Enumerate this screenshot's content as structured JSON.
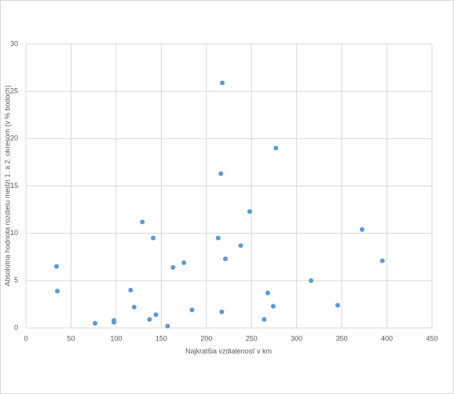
{
  "chart_data": {
    "type": "scatter",
    "xlabel": "Najkratšia vzdialenosť v km",
    "ylabel": "Absolútna hodnota rozdielu medzi 1. a 2. okresom (v % bodoch)",
    "color": "#5b9bd5",
    "x": [
      33.9,
      34.8,
      76.6,
      97.5,
      97.5,
      116,
      120,
      129,
      137,
      141,
      144,
      157,
      163,
      175,
      184,
      213,
      216,
      217.6,
      217,
      221,
      238,
      248,
      264,
      268,
      274,
      277,
      316,
      345.5,
      372.5,
      395
    ],
    "values": [
      6.5,
      3.9,
      0.5,
      0.8,
      0.6,
      4.0,
      2.2,
      11.2,
      0.9,
      9.5,
      1.4,
      0.2,
      6.4,
      6.9,
      1.9,
      9.5,
      16.3,
      25.9,
      1.7,
      7.3,
      8.7,
      12.3,
      0.9,
      3.7,
      2.3,
      19.0,
      5.0,
      2.4,
      10.4,
      7.1
    ],
    "xlim": [
      0,
      450
    ],
    "xticks": [
      0,
      50,
      100,
      150,
      200,
      250,
      300,
      350,
      400,
      450
    ],
    "ylim": [
      0,
      30
    ],
    "yticks": [
      0,
      5,
      10,
      15,
      20,
      25,
      30
    ],
    "grid": true
  }
}
